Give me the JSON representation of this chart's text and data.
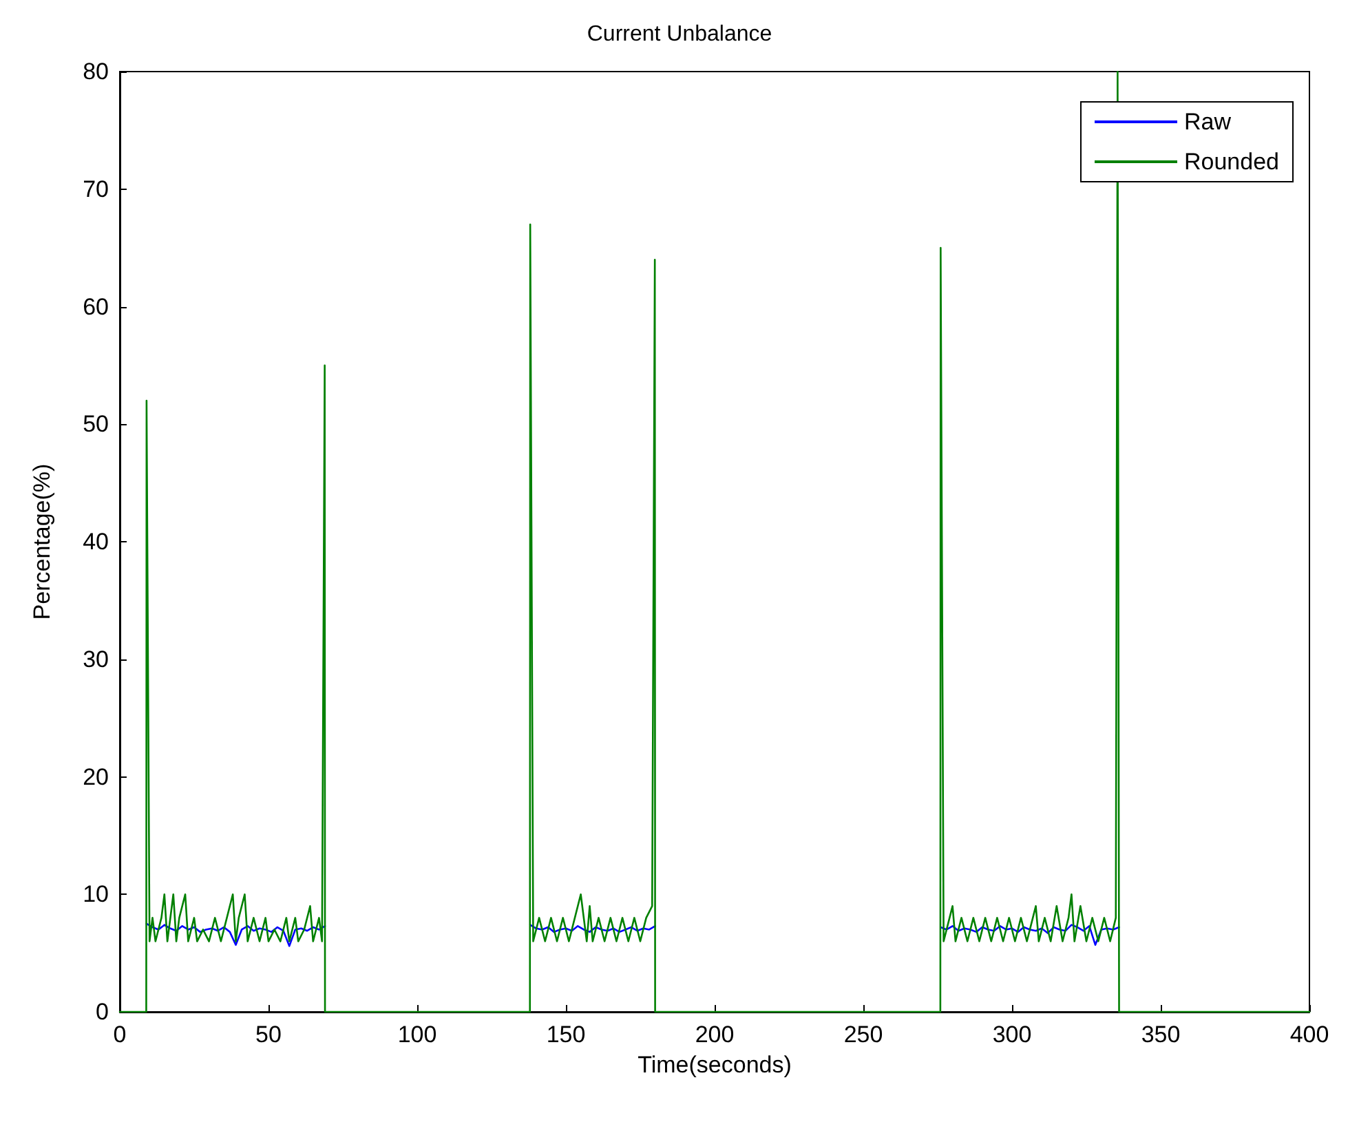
{
  "chart_data": {
    "type": "line",
    "title": "Current Unbalance",
    "xlabel": "Time(seconds)",
    "ylabel": "Percentage(%)",
    "xlim": [
      0,
      400
    ],
    "ylim": [
      0,
      80
    ],
    "xticks": [
      0,
      50,
      100,
      150,
      200,
      250,
      300,
      350,
      400
    ],
    "yticks": [
      0,
      10,
      20,
      30,
      40,
      50,
      60,
      70,
      80
    ],
    "grid": false,
    "legend": "top right",
    "marker": "none",
    "line_style": "solid",
    "series": [
      {
        "name": "Raw",
        "color": "#0000ff",
        "x": [
          9,
          11,
          13,
          15,
          17,
          19,
          21,
          23,
          25,
          27,
          29,
          31,
          33,
          35,
          37,
          39,
          41,
          43,
          45,
          47,
          49,
          51,
          53,
          55,
          57,
          59,
          61,
          63,
          65,
          67,
          69,
          100,
          138,
          140,
          142,
          144,
          146,
          148,
          150,
          152,
          154,
          156,
          158,
          160,
          162,
          164,
          166,
          168,
          170,
          172,
          174,
          176,
          178,
          180,
          230,
          276,
          278,
          280,
          282,
          284,
          286,
          288,
          290,
          292,
          294,
          296,
          298,
          300,
          302,
          304,
          306,
          308,
          310,
          312,
          314,
          316,
          318,
          320,
          322,
          324,
          326,
          328,
          330,
          332,
          334,
          336
        ],
        "values": [
          7.5,
          7.2,
          7,
          7.4,
          7.1,
          6.9,
          7.3,
          7,
          7.2,
          6.8,
          7,
          7.1,
          6.9,
          7.2,
          6.8,
          5.7,
          7,
          7.3,
          6.9,
          7.1,
          7,
          6.8,
          7.2,
          6.9,
          5.6,
          7,
          7.1,
          6.9,
          7.2,
          7,
          7.3,
          null,
          7.4,
          7.1,
          7,
          7.2,
          6.8,
          7,
          7.1,
          6.9,
          7.3,
          7,
          6.8,
          7.2,
          7,
          6.9,
          7.1,
          6.8,
          7,
          7.2,
          6.9,
          7.1,
          7,
          7.3,
          null,
          7.2,
          7,
          7.3,
          6.9,
          7.1,
          7,
          6.8,
          7.2,
          7,
          6.9,
          7.3,
          7,
          7.1,
          6.8,
          7.2,
          7,
          6.9,
          7.1,
          6.7,
          7.2,
          7,
          6.9,
          7.4,
          7.2,
          6.9,
          7.3,
          5.7,
          7,
          7.1,
          7,
          7.2
        ]
      },
      {
        "name": "Rounded",
        "color": "#008000",
        "x": [
          0,
          8.9,
          9,
          10,
          11,
          12,
          14,
          15,
          16,
          18,
          19,
          20,
          22,
          23,
          25,
          26,
          28,
          30,
          32,
          34,
          36,
          38,
          39,
          40,
          42,
          43,
          45,
          47,
          49,
          50,
          52,
          54,
          56,
          57,
          59,
          60,
          62,
          64,
          65,
          67,
          68,
          68.9,
          69,
          137.9,
          138,
          139,
          141,
          143,
          145,
          147,
          149,
          151,
          153,
          155,
          157,
          158,
          159,
          161,
          163,
          165,
          167,
          169,
          171,
          173,
          175,
          177,
          179,
          179.9,
          180,
          275.9,
          276,
          277,
          279,
          280,
          281,
          283,
          285,
          287,
          289,
          291,
          293,
          295,
          297,
          299,
          301,
          303,
          305,
          307,
          308,
          309,
          311,
          313,
          315,
          317,
          319,
          320,
          321,
          323,
          325,
          327,
          329,
          331,
          333,
          334.9,
          335.5,
          336,
          400
        ],
        "values": [
          0,
          0,
          52,
          6,
          8,
          6,
          8,
          10,
          6,
          10,
          6,
          8,
          10,
          6,
          8,
          6,
          7,
          6,
          8,
          6,
          8,
          10,
          6,
          8,
          10,
          6,
          8,
          6,
          8,
          6,
          7,
          6,
          8,
          6,
          8,
          6,
          7,
          9,
          6,
          8,
          6,
          55,
          0,
          0,
          67,
          6,
          8,
          6,
          8,
          6,
          8,
          6,
          8,
          10,
          6,
          9,
          6,
          8,
          6,
          8,
          6,
          8,
          6,
          8,
          6,
          8,
          9,
          64,
          0,
          0,
          65,
          6,
          8,
          9,
          6,
          8,
          6,
          8,
          6,
          8,
          6,
          8,
          6,
          8,
          6,
          8,
          6,
          8,
          9,
          6,
          8,
          6,
          9,
          6,
          8,
          10,
          6,
          9,
          6,
          8,
          6,
          8,
          6,
          8,
          80,
          0,
          0
        ]
      }
    ]
  }
}
